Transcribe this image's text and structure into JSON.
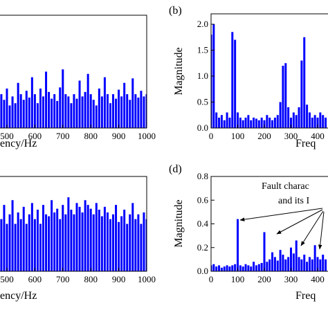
{
  "chart_data": [
    {
      "type": "bar",
      "xlabel": "ency/Hz",
      "color": "#0000ff",
      "x": [
        480,
        490,
        500,
        510,
        520,
        530,
        540,
        550,
        560,
        570,
        580,
        590,
        600,
        610,
        620,
        630,
        640,
        650,
        660,
        670,
        680,
        690,
        700,
        710,
        720,
        730,
        740,
        750,
        760,
        770,
        780,
        790,
        800,
        810,
        820,
        830,
        840,
        850,
        860,
        870,
        880,
        890,
        900,
        910,
        920,
        930,
        940,
        950,
        960,
        970,
        980,
        990,
        1000
      ],
      "values": [
        0.3,
        0.25,
        0.35,
        0.2,
        0.28,
        0.22,
        0.4,
        0.3,
        0.25,
        0.33,
        0.27,
        0.45,
        0.3,
        0.22,
        0.35,
        0.28,
        0.5,
        0.32,
        0.26,
        0.3,
        0.24,
        0.36,
        0.52,
        0.3,
        0.28,
        0.22,
        0.3,
        0.26,
        0.42,
        0.28,
        0.32,
        0.48,
        0.3,
        0.25,
        0.2,
        0.35,
        0.28,
        0.45,
        0.3,
        0.22,
        0.3,
        0.26,
        0.34,
        0.28,
        0.4,
        0.3,
        0.25,
        0.44,
        0.3,
        0.27,
        0.33,
        0.28,
        0.3
      ],
      "xlim": [
        0,
        1000
      ],
      "xticks": [
        500,
        600,
        700,
        800,
        900,
        1000
      ],
      "ylim": [
        0,
        1
      ]
    },
    {
      "type": "bar",
      "label": "(b)",
      "xlabel": "Freq",
      "ylabel": "Magnitude",
      "color": "#0000ff",
      "x": [
        0,
        10,
        20,
        30,
        40,
        50,
        60,
        70,
        80,
        90,
        100,
        110,
        120,
        130,
        140,
        150,
        160,
        170,
        180,
        190,
        200,
        210,
        220,
        230,
        240,
        250,
        260,
        270,
        280,
        290,
        300,
        310,
        320,
        330,
        340,
        350,
        360,
        370,
        380,
        390,
        400,
        410,
        420,
        430
      ],
      "values": [
        1.8,
        2.0,
        0.3,
        0.2,
        0.25,
        0.15,
        0.3,
        0.2,
        1.85,
        1.7,
        0.3,
        0.2,
        0.15,
        0.2,
        0.25,
        0.15,
        0.2,
        0.18,
        0.15,
        0.2,
        0.15,
        0.25,
        0.2,
        0.15,
        0.2,
        0.25,
        0.5,
        1.2,
        1.25,
        0.4,
        0.2,
        0.3,
        0.25,
        0.4,
        1.3,
        1.75,
        0.45,
        0.3,
        0.2,
        0.25,
        0.2,
        0.3,
        0.25,
        0.2
      ],
      "xlim": [
        0,
        500
      ],
      "xticks": [
        0,
        100,
        200,
        300,
        400
      ],
      "ylim": [
        0,
        2.2
      ],
      "yticks": [
        {
          "value": 0,
          "label": "0.0"
        },
        {
          "value": 0.5,
          "label": "0.5"
        },
        {
          "value": 1,
          "label": "1.0"
        },
        {
          "value": 1.5,
          "label": "1.5"
        },
        {
          "value": 2,
          "label": "2.0"
        }
      ]
    },
    {
      "type": "bar",
      "xlabel": "ency/Hz",
      "color": "#0000ff",
      "x": [
        480,
        490,
        500,
        510,
        520,
        530,
        540,
        550,
        560,
        570,
        580,
        590,
        600,
        610,
        620,
        630,
        640,
        650,
        660,
        670,
        680,
        690,
        700,
        710,
        720,
        730,
        740,
        750,
        760,
        770,
        780,
        790,
        800,
        810,
        820,
        830,
        840,
        850,
        860,
        870,
        880,
        890,
        900,
        910,
        920,
        930,
        940,
        950,
        960,
        970,
        980,
        990,
        1000
      ],
      "values": [
        0.55,
        0.7,
        0.5,
        0.6,
        0.75,
        0.5,
        0.62,
        0.55,
        0.68,
        0.5,
        0.6,
        0.72,
        0.55,
        0.65,
        0.5,
        0.7,
        0.6,
        0.58,
        0.75,
        0.62,
        0.66,
        0.55,
        0.7,
        0.6,
        0.78,
        0.65,
        0.6,
        0.72,
        0.68,
        0.62,
        0.75,
        0.7,
        0.66,
        0.6,
        0.72,
        0.65,
        0.58,
        0.68,
        0.62,
        0.55,
        0.6,
        0.7,
        0.52,
        0.58,
        0.65,
        0.5,
        0.6,
        0.72,
        0.55,
        0.6,
        0.5,
        0.62,
        0.55
      ],
      "xlim": [
        0,
        1000
      ],
      "xticks": [
        500,
        600,
        700,
        800,
        900,
        1000
      ],
      "ylim": [
        0,
        1
      ]
    },
    {
      "type": "bar",
      "label": "(d)",
      "xlabel": "Freq",
      "ylabel": "Magnitude",
      "color": "#0000ff",
      "annotations": [
        "Fault charac",
        "and its I"
      ],
      "x": [
        0,
        10,
        20,
        30,
        40,
        50,
        60,
        70,
        80,
        90,
        100,
        110,
        120,
        130,
        140,
        150,
        160,
        170,
        180,
        190,
        200,
        210,
        220,
        230,
        240,
        250,
        260,
        270,
        280,
        290,
        300,
        310,
        320,
        330,
        340,
        350,
        360,
        370,
        380,
        390,
        400,
        410,
        420,
        430
      ],
      "values": [
        0.05,
        0.06,
        0.04,
        0.05,
        0.03,
        0.04,
        0.05,
        0.04,
        0.05,
        0.06,
        0.44,
        0.05,
        0.04,
        0.06,
        0.05,
        0.04,
        0.08,
        0.05,
        0.06,
        0.07,
        0.33,
        0.08,
        0.1,
        0.16,
        0.12,
        0.09,
        0.18,
        0.14,
        0.1,
        0.12,
        0.2,
        0.15,
        0.26,
        0.12,
        0.1,
        0.14,
        0.08,
        0.12,
        0.1,
        0.22,
        0.12,
        0.1,
        0.14,
        0.1
      ],
      "xlim": [
        0,
        500
      ],
      "xticks": [
        0,
        100,
        200,
        300,
        400
      ],
      "ylim": [
        0,
        0.8
      ],
      "yticks": [
        {
          "value": 0,
          "label": "0.0"
        },
        {
          "value": 0.2,
          "label": "0.2"
        },
        {
          "value": 0.4,
          "label": "0.4"
        },
        {
          "value": 0.6,
          "label": "0.6"
        },
        {
          "value": 0.8,
          "label": "0.8"
        }
      ]
    }
  ]
}
